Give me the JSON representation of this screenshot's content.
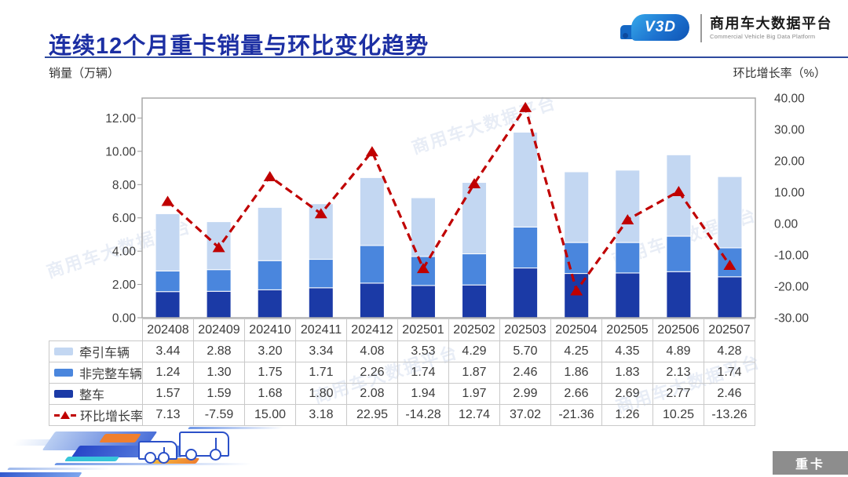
{
  "header": {
    "title": "连续12个月重卡销量与环比变化趋势",
    "logo": {
      "brand_mark": "V3D",
      "name_cn": "商用车大数据平台",
      "name_en": "Commercial Vehicle Big Data Platform"
    }
  },
  "axes": {
    "left_title": "销量（万辆）",
    "right_title": "环比增长率（%）"
  },
  "chart_data": {
    "type": "combo",
    "subtype": "stacked-bar-with-line",
    "title": "连续12个月重卡销量与环比变化趋势",
    "categories": [
      "202408",
      "202409",
      "202410",
      "202411",
      "202412",
      "202501",
      "202502",
      "202503",
      "202504",
      "202505",
      "202506",
      "202507"
    ],
    "series": [
      {
        "name": "牵引车辆",
        "type": "bar",
        "color": "#c3d7f2",
        "values": [
          3.44,
          2.88,
          3.2,
          3.34,
          4.08,
          3.53,
          4.29,
          5.7,
          4.25,
          4.35,
          4.89,
          4.28
        ]
      },
      {
        "name": "非完整车辆",
        "type": "bar",
        "color": "#4a86dd",
        "values": [
          1.24,
          1.3,
          1.75,
          1.71,
          2.26,
          1.74,
          1.87,
          2.46,
          1.86,
          1.83,
          2.13,
          1.74
        ]
      },
      {
        "name": "整车",
        "type": "bar",
        "color": "#1b3aa6",
        "values": [
          1.57,
          1.59,
          1.68,
          1.8,
          2.08,
          1.94,
          1.97,
          2.99,
          2.66,
          2.69,
          2.77,
          2.46
        ]
      },
      {
        "name": "环比增长率",
        "type": "line",
        "color": "#c00000",
        "values": [
          7.13,
          -7.59,
          15.0,
          3.18,
          22.95,
          -14.28,
          12.74,
          37.02,
          -21.36,
          1.26,
          10.25,
          -13.26
        ]
      }
    ],
    "bar_stack_order_bottom_to_top": [
      "整车",
      "非完整车辆",
      "牵引车辆"
    ],
    "left_axis": {
      "label": "销量（万辆）",
      "min": 0,
      "max": 13.2,
      "ticks": [
        0,
        2,
        4,
        6,
        8,
        10,
        12
      ],
      "tick_format": "0.00"
    },
    "right_axis": {
      "label": "环比增长率（%）",
      "min": -30,
      "max": 40,
      "ticks": [
        40,
        30,
        20,
        10,
        0,
        -10,
        -20,
        -30
      ],
      "tick_format": "0.00"
    },
    "grid": false,
    "legend_position": "table-rows-left",
    "line_style": "dashed-with-triangle-markers"
  },
  "watermark": {
    "text": "商用车大数据平台"
  },
  "footer": {
    "badge_label": "重卡"
  }
}
